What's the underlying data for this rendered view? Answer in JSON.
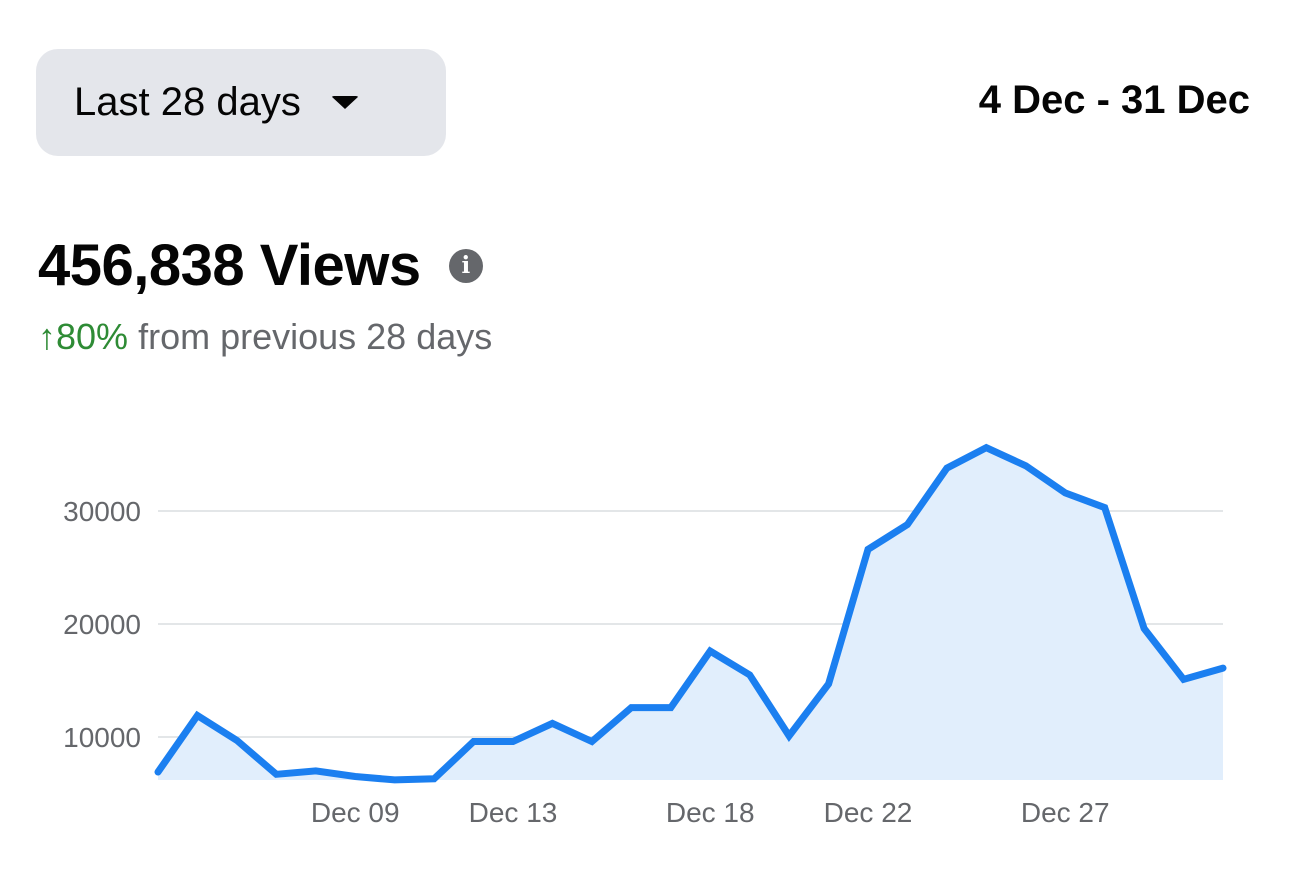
{
  "header": {
    "range_selector_label": "Last 28 days",
    "date_range": "4 Dec - 31 Dec"
  },
  "summary": {
    "total_label": "456,838 Views",
    "info_icon": "info-icon",
    "delta_arrow": "↑",
    "delta_value": "80%",
    "delta_text": "from previous 28 days",
    "delta_color": "#2e8b35"
  },
  "chart_data": {
    "type": "area",
    "title": "456,838 Views",
    "xlabel": "",
    "ylabel": "Views",
    "x": [
      "Dec 04",
      "Dec 05",
      "Dec 06",
      "Dec 07",
      "Dec 08",
      "Dec 09",
      "Dec 10",
      "Dec 11",
      "Dec 12",
      "Dec 13",
      "Dec 14",
      "Dec 15",
      "Dec 16",
      "Dec 17",
      "Dec 18",
      "Dec 19",
      "Dec 20",
      "Dec 21",
      "Dec 22",
      "Dec 23",
      "Dec 24",
      "Dec 25",
      "Dec 26",
      "Dec 27",
      "Dec 28",
      "Dec 29",
      "Dec 30",
      "Dec 31"
    ],
    "series": [
      {
        "name": "Views",
        "color": "#1b7ff0",
        "fill": "#e1eefc",
        "values": [
          6900,
          11900,
          9700,
          6700,
          7000,
          6500,
          6200,
          6300,
          9600,
          9600,
          11200,
          9600,
          12600,
          12600,
          17600,
          15500,
          10100,
          14700,
          26600,
          28800,
          33800,
          35600,
          34000,
          31600,
          30300,
          19600,
          15100,
          16100
        ]
      }
    ],
    "y_ticks": [
      10000,
      20000,
      30000
    ],
    "y_tick_labels": [
      "10000",
      "20000",
      "30000"
    ],
    "x_tick_labels": [
      "Dec 09",
      "Dec 13",
      "Dec 18",
      "Dec 22",
      "Dec 27"
    ],
    "ylim": [
      6200,
      36000
    ],
    "grid": true,
    "legend": "none"
  }
}
